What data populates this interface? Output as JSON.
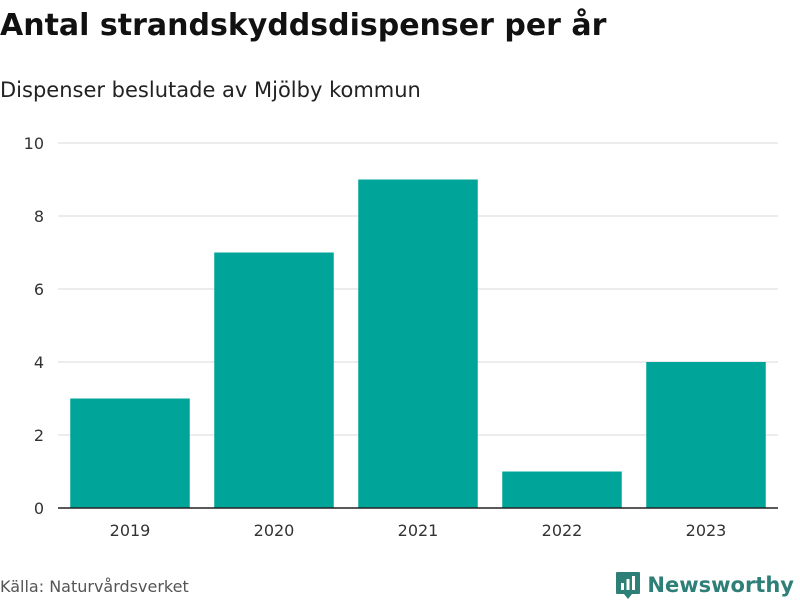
{
  "chart_data": {
    "type": "bar",
    "title": "Antal strandskyddsdispenser per år",
    "subtitle": "Dispenser beslutade av Mjölby kommun",
    "categories": [
      "2019",
      "2020",
      "2021",
      "2022",
      "2023"
    ],
    "values": [
      3,
      7,
      9,
      1,
      4
    ],
    "ylim": [
      0,
      10
    ],
    "yticks": [
      "0",
      "2",
      "4",
      "6",
      "8",
      "10"
    ],
    "xlabel": "",
    "ylabel": "",
    "grid": true,
    "bar_color": "#00a499"
  },
  "footer": {
    "source": "Källa: Naturvårdsverket",
    "brand": "Newsworthy",
    "brand_color": "#2e7f78"
  }
}
